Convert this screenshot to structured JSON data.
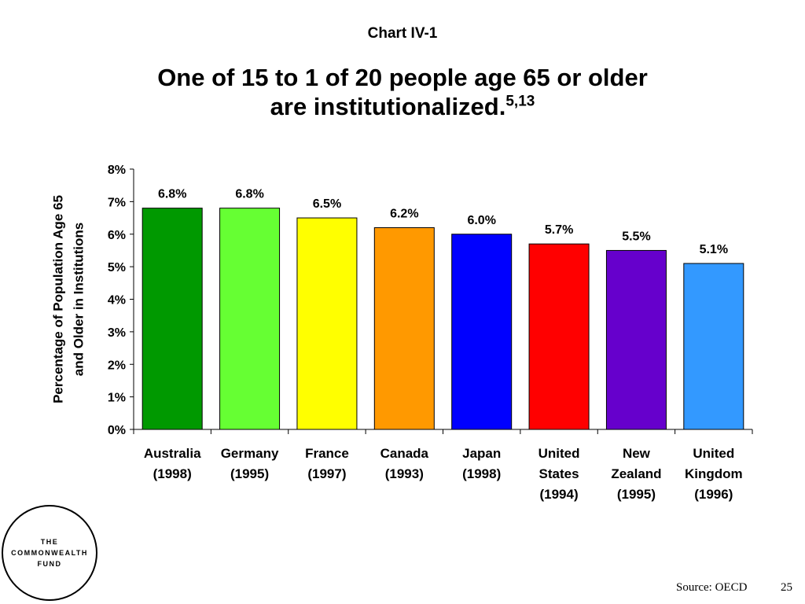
{
  "slide": {
    "chart_label": "Chart IV-1",
    "title_line1": "One of 15 to 1 of 20 people age 65 or older",
    "title_line2": "are institutionalized.",
    "title_superscript": "5,13",
    "source": "Source: OECD",
    "page_number": "25",
    "logo": {
      "line1": "THE",
      "line2": "COMMONWEALTH",
      "line3": "FUND"
    }
  },
  "chart_data": {
    "type": "bar",
    "title": "",
    "ylabel_lines": [
      "Percentage of Population Age 65",
      "and Older in Institutions"
    ],
    "xlabel": "",
    "ylim": [
      0,
      8
    ],
    "yticks": [
      0,
      1,
      2,
      3,
      4,
      5,
      6,
      7,
      8
    ],
    "ytick_suffix": "%",
    "grid": false,
    "legend": "none",
    "categories": [
      {
        "lines": [
          "Australia",
          "(1998)"
        ]
      },
      {
        "lines": [
          "Germany",
          "(1995)"
        ]
      },
      {
        "lines": [
          "France",
          "(1997)"
        ]
      },
      {
        "lines": [
          "Canada",
          "(1993)"
        ]
      },
      {
        "lines": [
          "Japan",
          "(1998)"
        ]
      },
      {
        "lines": [
          "United",
          "States",
          "(1994)"
        ]
      },
      {
        "lines": [
          "New",
          "Zealand",
          "(1995)"
        ]
      },
      {
        "lines": [
          "United",
          "Kingdom",
          "(1996)"
        ]
      }
    ],
    "values": [
      6.8,
      6.8,
      6.5,
      6.2,
      6.0,
      5.7,
      5.5,
      5.1
    ],
    "data_labels": [
      "6.8%",
      "6.8%",
      "6.5%",
      "6.2%",
      "6.0%",
      "5.7%",
      "5.5%",
      "5.1%"
    ],
    "colors": [
      "#009900",
      "#66ff33",
      "#ffff00",
      "#ff9900",
      "#0000ff",
      "#ff0000",
      "#6600cc",
      "#3399ff"
    ]
  }
}
